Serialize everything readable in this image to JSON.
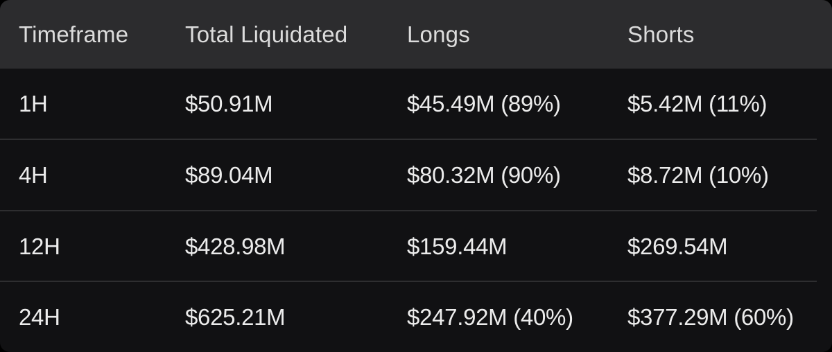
{
  "table": {
    "headers": [
      "Timeframe",
      "Total Liquidated",
      "Longs",
      "Shorts"
    ],
    "rows": [
      {
        "timeframe": "1H",
        "total": "$50.91M",
        "longs": "$45.49M (89%)",
        "shorts": "$5.42M (11%)"
      },
      {
        "timeframe": "4H",
        "total": "$89.04M",
        "longs": "$80.32M (90%)",
        "shorts": "$8.72M (10%)"
      },
      {
        "timeframe": "12H",
        "total": "$428.98M",
        "longs": "$159.44M",
        "shorts": "$269.54M"
      },
      {
        "timeframe": "24H",
        "total": "$625.21M",
        "longs": "$247.92M (40%)",
        "shorts": "$377.29M (60%)"
      }
    ]
  },
  "colors": {
    "background": "#111113",
    "header_background": "#2c2c2e",
    "divider": "#2e2e30",
    "text": "#ececec"
  }
}
